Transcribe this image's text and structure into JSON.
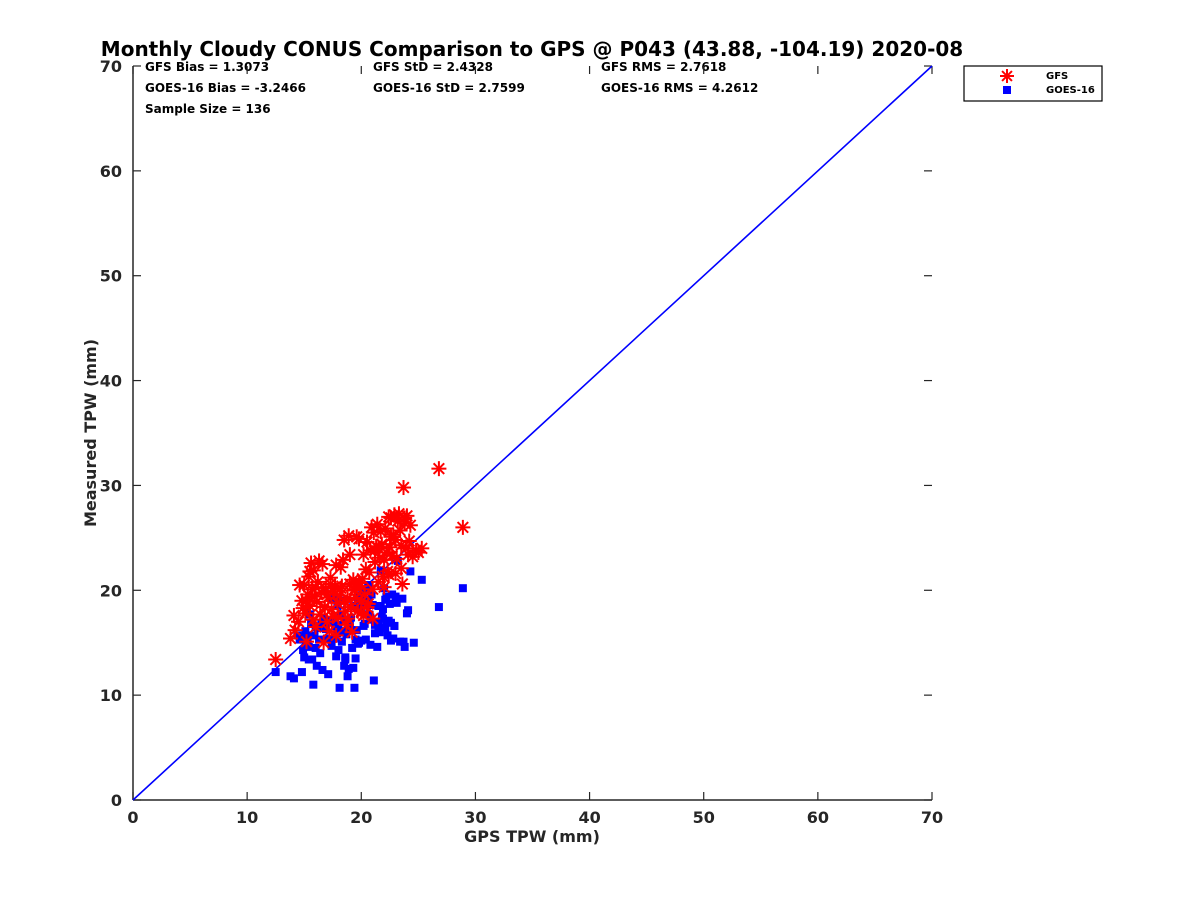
{
  "chart_data": {
    "type": "scatter",
    "title": "Monthly Cloudy CONUS Comparison to GPS @ P043 (43.88, -104.19) 2020-08",
    "xlabel": "GPS TPW (mm)",
    "ylabel": "Measured TPW (mm)",
    "xlim": [
      0,
      70
    ],
    "ylim": [
      0,
      70
    ],
    "xticks": [
      "0",
      "10",
      "20",
      "30",
      "40",
      "50",
      "60",
      "70"
    ],
    "yticks": [
      "0",
      "10",
      "20",
      "30",
      "40",
      "50",
      "60",
      "70"
    ],
    "grid": false,
    "legend_position": "top-right",
    "stats": [
      [
        "GFS Bias = 1.3073",
        "GFS StD = 2.4328",
        "GFS RMS = 2.7618"
      ],
      [
        "GOES-16 Bias = -3.2466",
        "GOES-16 StD = 2.7599",
        "GOES-16 RMS = 4.2612"
      ],
      [
        "Sample Size = 136"
      ]
    ],
    "reference_line": {
      "x": [
        0,
        70
      ],
      "y": [
        0,
        70
      ],
      "color": "#0000ff"
    },
    "series": [
      {
        "name": "GFS",
        "marker": "asterisk",
        "color": "#ff0000",
        "x": [
          12.5,
          13.8,
          14.1,
          14.2,
          14.5,
          14.8,
          14.9,
          15.0,
          15.1,
          15.2,
          15.3,
          15.4,
          15.5,
          15.6,
          15.7,
          15.8,
          15.9,
          16.0,
          16.1,
          16.2,
          16.3,
          16.4,
          16.5,
          16.6,
          16.7,
          16.8,
          16.9,
          17.0,
          17.1,
          17.2,
          17.3,
          17.4,
          17.5,
          17.6,
          17.7,
          17.8,
          17.9,
          18.0,
          18.1,
          18.2,
          18.3,
          18.4,
          18.5,
          18.6,
          18.7,
          18.8,
          18.9,
          19.0,
          19.1,
          19.2,
          19.3,
          19.4,
          19.5,
          19.6,
          19.7,
          19.8,
          19.9,
          20.0,
          20.1,
          20.2,
          20.3,
          20.4,
          20.5,
          20.6,
          20.7,
          20.8,
          20.9,
          21.0,
          21.1,
          21.2,
          21.3,
          21.4,
          21.5,
          21.6,
          21.7,
          21.8,
          21.9,
          22.0,
          22.1,
          22.2,
          22.3,
          22.4,
          22.5,
          22.6,
          22.7,
          22.8,
          22.9,
          23.0,
          23.1,
          23.2,
          23.3,
          23.4,
          23.5,
          23.6,
          23.7,
          23.8,
          23.9,
          24.0,
          24.1,
          24.2,
          24.3,
          24.5,
          24.8,
          25.0,
          25.3,
          26.8,
          28.9,
          15.2,
          16.0,
          17.3,
          18.5,
          19.0,
          19.8,
          20.5,
          21.0,
          21.5,
          22.0,
          22.6,
          23.0,
          23.5,
          14.6,
          15.5,
          16.8,
          17.8,
          18.2,
          19.4,
          20.2,
          21.2,
          22.4,
          23.8,
          15.8,
          17.0,
          18.8,
          20.0
        ],
        "y": [
          13.4,
          15.4,
          17.6,
          16.2,
          17.0,
          19.0,
          18.3,
          20.5,
          17.8,
          15.1,
          19.6,
          21.3,
          18.5,
          22.6,
          20.1,
          17.2,
          19.4,
          16.5,
          18.9,
          20.8,
          22.8,
          17.7,
          19.8,
          22.5,
          15.0,
          18.4,
          20.2,
          17.0,
          19.3,
          16.1,
          20.6,
          18.2,
          17.5,
          19.9,
          20.3,
          15.7,
          18.8,
          17.4,
          19.5,
          22.2,
          20.4,
          22.9,
          24.8,
          18.0,
          16.7,
          19.2,
          25.2,
          20.6,
          18.4,
          16.0,
          21.0,
          20.0,
          19.3,
          25.1,
          18.0,
          24.9,
          20.4,
          17.9,
          21.1,
          23.4,
          19.6,
          22.0,
          24.6,
          18.7,
          21.7,
          23.8,
          26.0,
          20.1,
          25.5,
          22.7,
          24.2,
          26.3,
          20.8,
          23.1,
          25.6,
          24.4,
          21.3,
          22.9,
          25.9,
          23.6,
          21.8,
          27.0,
          24.1,
          26.9,
          23.3,
          25.3,
          27.2,
          24.8,
          23.0,
          26.6,
          27.3,
          25.7,
          22.1,
          20.6,
          29.8,
          26.4,
          24.0,
          27.1,
          23.4,
          24.7,
          26.2,
          23.2,
          23.8,
          23.6,
          24.0,
          31.6,
          26.0,
          19.0,
          20.3,
          21.2,
          18.9,
          23.4,
          20.7,
          18.4,
          17.3,
          24.0,
          20.3,
          25.1,
          21.6,
          24.3,
          20.5,
          21.8,
          18.4,
          22.4,
          20.2,
          20.1,
          17.6,
          23.8,
          21.5,
          26.9,
          21.9,
          19.6,
          17.3,
          18.9
        ]
      },
      {
        "name": "GOES-16",
        "marker": "square",
        "color": "#0000ff",
        "x": [
          12.5,
          13.8,
          14.1,
          14.4,
          14.6,
          14.8,
          14.9,
          15.0,
          15.2,
          15.3,
          15.4,
          15.5,
          15.6,
          15.8,
          15.9,
          16.0,
          16.1,
          16.3,
          16.5,
          16.6,
          16.8,
          16.9,
          17.0,
          17.1,
          17.3,
          17.4,
          17.5,
          17.7,
          17.8,
          17.9,
          18.0,
          18.1,
          18.2,
          18.3,
          18.4,
          18.5,
          18.6,
          18.7,
          18.8,
          18.9,
          19.0,
          19.1,
          19.2,
          19.3,
          19.4,
          19.5,
          19.6,
          19.7,
          19.8,
          19.9,
          20.0,
          20.1,
          20.2,
          20.3,
          20.4,
          20.5,
          20.6,
          20.7,
          20.8,
          20.9,
          21.0,
          21.1,
          21.2,
          21.3,
          21.4,
          21.5,
          21.6,
          21.7,
          21.8,
          21.9,
          22.0,
          22.1,
          22.2,
          22.3,
          22.4,
          22.5,
          22.6,
          22.7,
          22.8,
          22.9,
          23.0,
          23.2,
          23.4,
          23.6,
          23.8,
          24.0,
          24.3,
          24.6,
          25.3,
          26.8,
          28.9,
          15.1,
          16.2,
          17.2,
          18.6,
          19.3,
          20.0,
          20.8,
          21.5,
          22.1,
          23.1,
          14.9,
          16.4,
          17.6,
          18.9,
          19.7,
          20.6,
          21.9,
          15.7,
          17.9,
          19.5,
          21.2,
          22.6,
          16.7,
          18.3,
          20.3,
          23.7,
          15.4,
          19.9,
          22.2,
          17.0,
          21.7,
          18.7,
          20.9,
          16.0,
          19.1,
          22.9,
          24.1,
          15.3,
          18.0,
          20.4,
          21.4
        ],
        "y": [
          12.2,
          11.8,
          11.6,
          15.7,
          15.3,
          12.2,
          14.3,
          13.6,
          18.1,
          15.0,
          13.4,
          17.7,
          16.8,
          11.0,
          15.7,
          14.5,
          12.8,
          15.3,
          16.9,
          12.4,
          20.0,
          16.3,
          15.4,
          12.0,
          17.1,
          14.7,
          19.2,
          16.6,
          13.7,
          15.9,
          14.3,
          10.7,
          17.7,
          19.0,
          16.1,
          12.8,
          13.4,
          15.8,
          11.8,
          12.5,
          16.9,
          17.4,
          14.5,
          18.5,
          10.7,
          13.5,
          16.2,
          19.1,
          15.0,
          18.3,
          17.9,
          19.9,
          16.6,
          20.1,
          15.3,
          19.0,
          20.5,
          17.7,
          14.8,
          19.6,
          18.6,
          11.4,
          15.9,
          16.9,
          14.6,
          18.5,
          16.0,
          21.9,
          17.5,
          18.2,
          20.2,
          16.4,
          19.4,
          15.7,
          17.1,
          18.7,
          16.9,
          19.6,
          15.4,
          16.6,
          19.4,
          22.8,
          15.1,
          19.2,
          14.6,
          17.8,
          21.8,
          15.0,
          21.0,
          18.4,
          20.2,
          16.1,
          16.4,
          17.2,
          13.6,
          12.6,
          15.2,
          17.4,
          16.6,
          19.1,
          18.8,
          15.6,
          14.0,
          15.4,
          16.5,
          14.9,
          19.0,
          17.3,
          13.4,
          18.6,
          15.3,
          16.7,
          15.2,
          17.3,
          15.1,
          16.8,
          15.1,
          14.6,
          19.5,
          17.0,
          17.0,
          18.5,
          17.2,
          17.2,
          16.5,
          16.2,
          16.6,
          18.1,
          15.7,
          16.7,
          17.7,
          17.0
        ]
      }
    ]
  }
}
